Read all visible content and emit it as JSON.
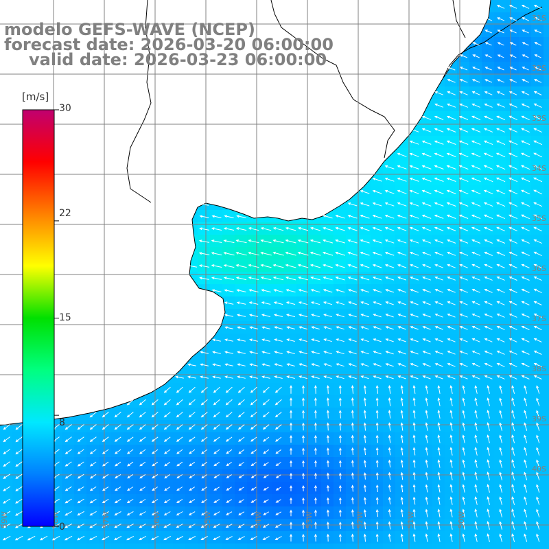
{
  "title": {
    "model": "modelo GEFS-WAVE (NCEP)",
    "forecast": "forecast date: 2026-03-20 06:00:00",
    "valid": "valid date: 2026-03-23 06:00:00"
  },
  "colorbar": {
    "units": "[m/s]",
    "ticks": [
      "30",
      "22",
      "15",
      "8",
      "0"
    ],
    "min": 0,
    "max": 30,
    "tick_values": [
      30,
      22,
      15,
      8,
      0
    ],
    "colors": [
      "#0000ff",
      "#0080ff",
      "#00e8ff",
      "#00ff80",
      "#00e000",
      "#ffff00",
      "#ff8000",
      "#ff0000",
      "#c00070"
    ]
  },
  "map": {
    "quantity": "wind speed",
    "land_color": "#ffffff",
    "coast_color": "#000000",
    "grid_color": "#808080",
    "arrow_color": "#ffffff",
    "lat_labels": [
      "31S",
      "32S",
      "33S",
      "34S",
      "35S",
      "36S",
      "37S",
      "38S",
      "39S",
      "40S"
    ],
    "lon_labels": [
      "59W",
      "58W",
      "57W",
      "56W",
      "55W",
      "54W",
      "53W",
      "52W",
      "51W",
      "50W"
    ]
  }
}
